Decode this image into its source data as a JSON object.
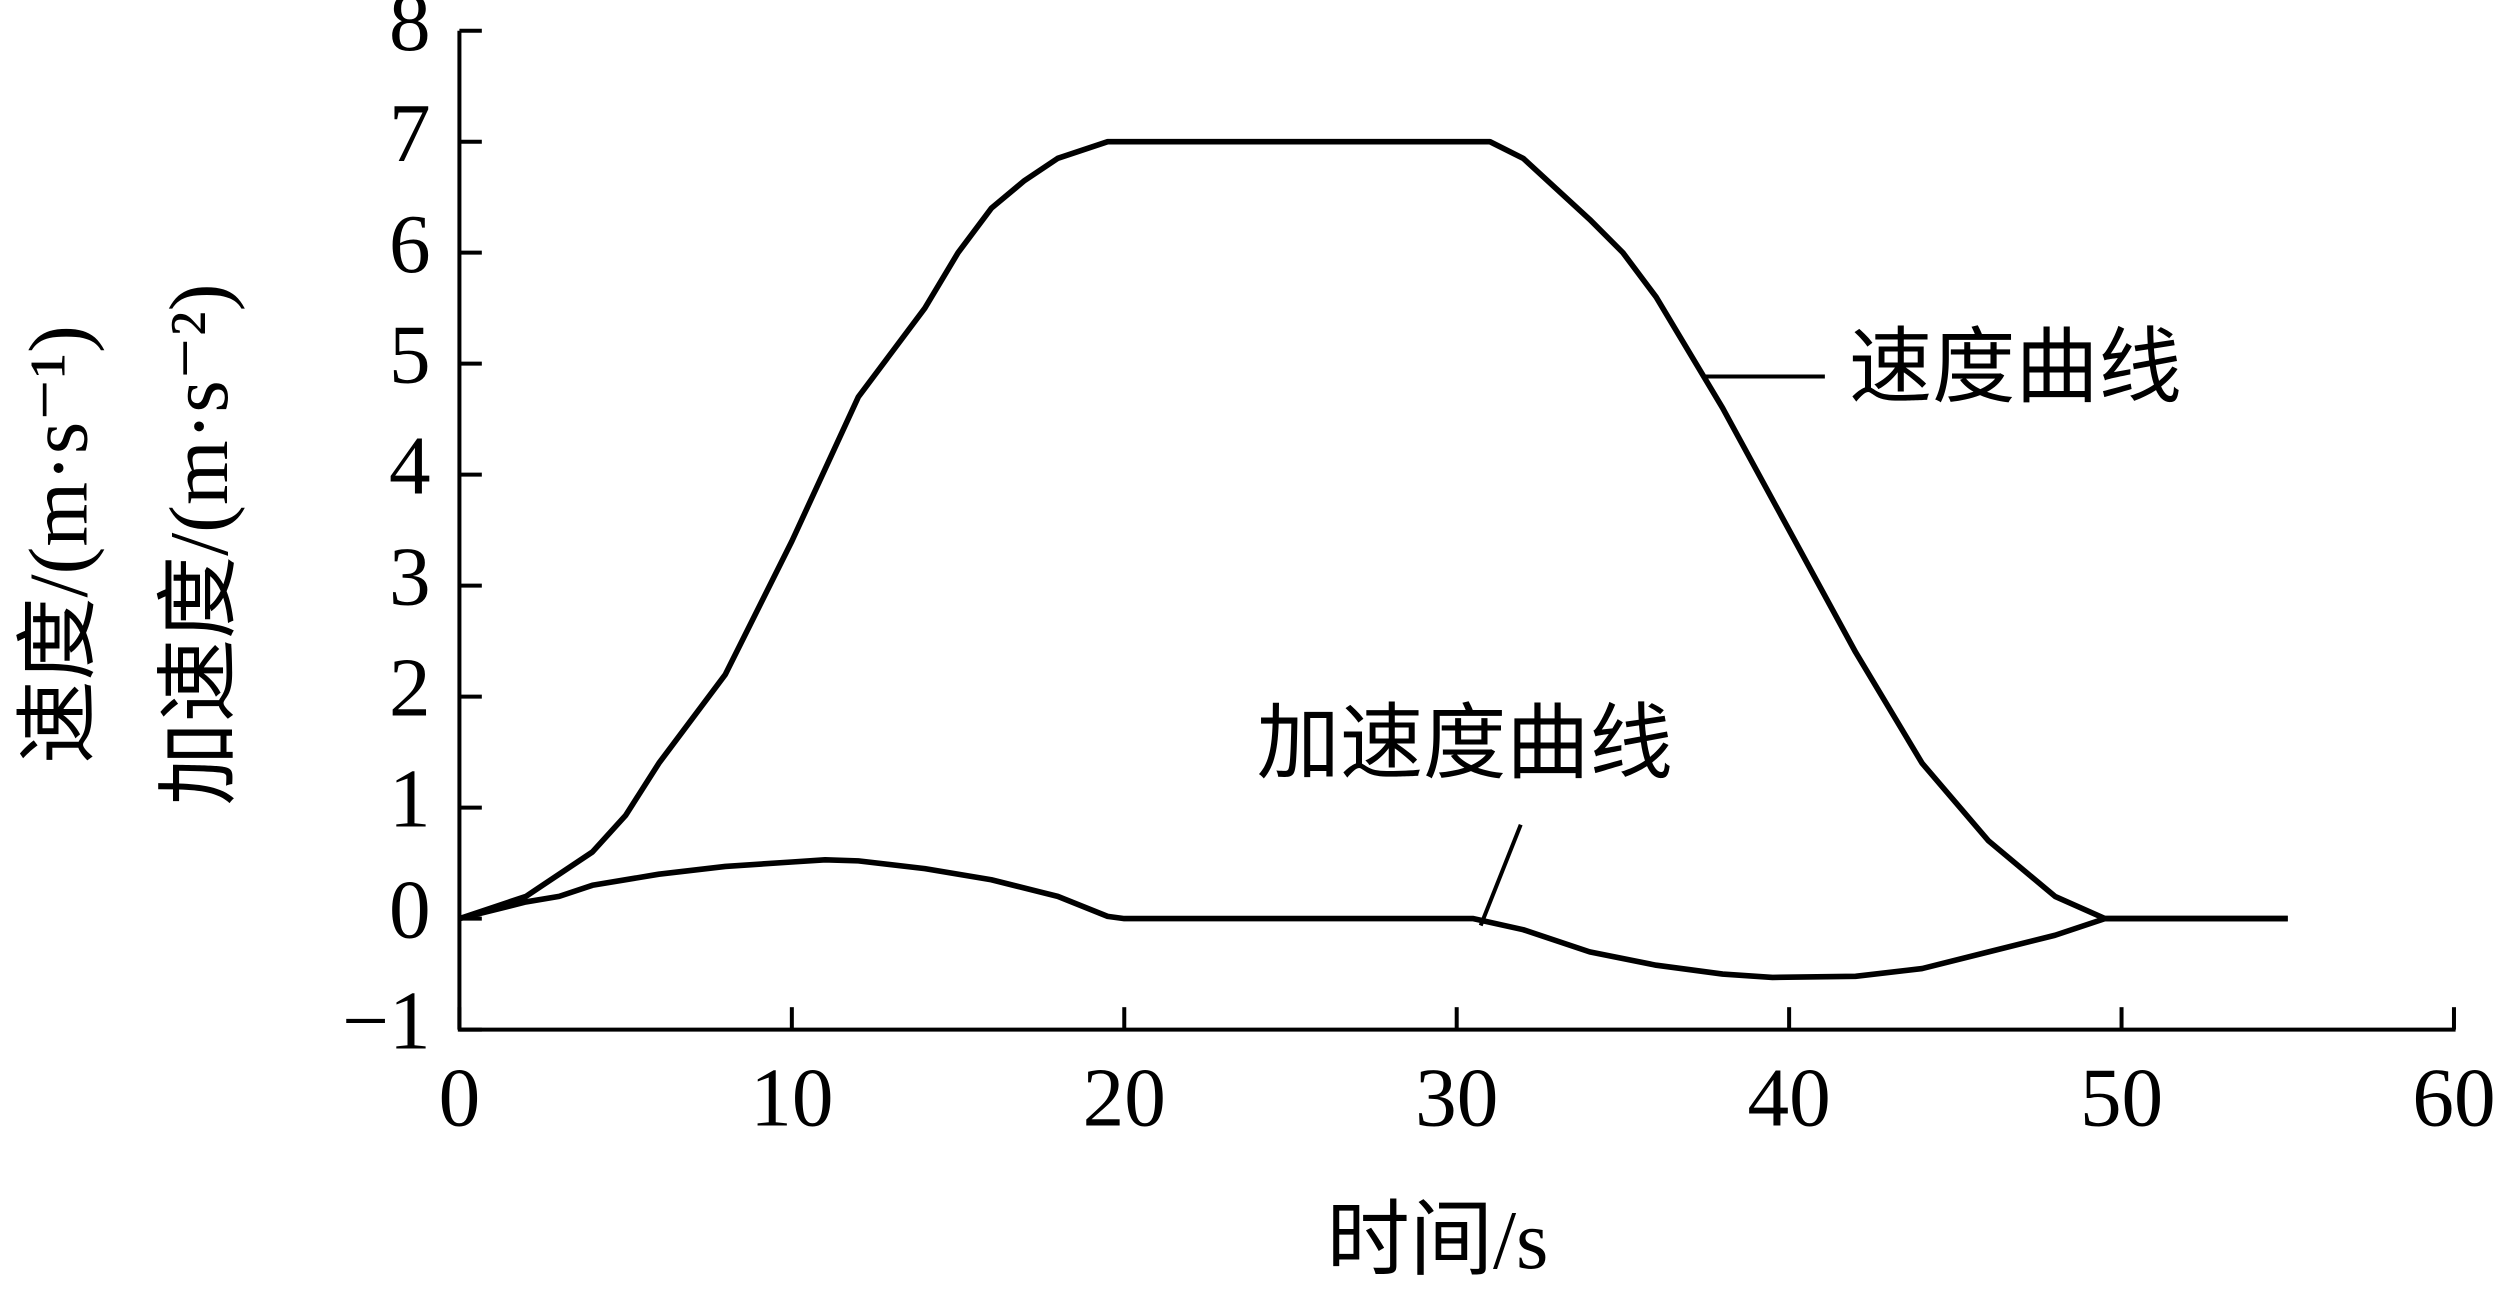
{
  "chart_data": {
    "type": "line",
    "x_label": "时间/s",
    "y_label": [
      "速度/(m·s⁻¹)",
      "加速度/(m·s⁻²)"
    ],
    "xlim": [
      0,
      60
    ],
    "xticks": [
      0,
      10,
      20,
      30,
      40,
      50,
      60
    ],
    "ylim": [
      -1,
      8
    ],
    "yticks": [
      {
        "value": -1,
        "label": "−1"
      },
      0,
      1,
      2,
      3,
      4,
      5,
      6,
      7,
      8
    ],
    "grid": false,
    "series": [
      {
        "name": "速度曲线",
        "color": "#000000",
        "x": [
          0,
          2,
          4,
          5,
          6,
          8,
          10,
          12,
          14,
          15,
          16,
          17,
          18,
          19.5,
          30,
          31,
          32,
          34,
          35,
          36,
          38,
          40,
          42,
          44,
          46,
          48,
          49.5,
          55
        ],
        "values": [
          0,
          0.2,
          0.6,
          0.93,
          1.4,
          2.2,
          3.4,
          4.7,
          5.5,
          6.0,
          6.4,
          6.65,
          6.85,
          7,
          7,
          7,
          6.85,
          6.3,
          6.0,
          5.6,
          4.6,
          3.5,
          2.4,
          1.4,
          0.7,
          0.2,
          0,
          0
        ]
      },
      {
        "name": "加速度曲线",
        "color": "#000000",
        "x": [
          0,
          2,
          3,
          4,
          6,
          8,
          10,
          11,
          12,
          14,
          16,
          18,
          19.5,
          20,
          30,
          30.5,
          32,
          34,
          36,
          38,
          39.5,
          42,
          44,
          46,
          48,
          49.5,
          55
        ],
        "values": [
          0,
          0.15,
          0.2,
          0.3,
          0.4,
          0.47,
          0.51,
          0.53,
          0.52,
          0.45,
          0.35,
          0.2,
          0.02,
          0,
          0,
          0,
          -0.1,
          -0.3,
          -0.42,
          -0.5,
          -0.53,
          -0.52,
          -0.45,
          -0.3,
          -0.15,
          0,
          0
        ]
      }
    ]
  }
}
